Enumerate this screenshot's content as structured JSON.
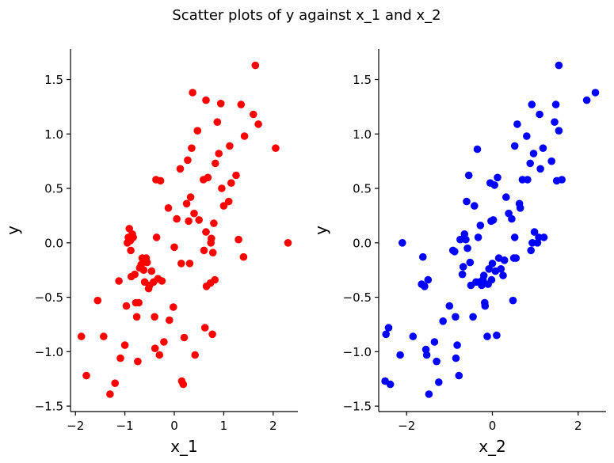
{
  "figure": {
    "title": "Scatter plots of y against x_1 and x_2"
  },
  "chart_data": [
    {
      "type": "scatter",
      "title": "",
      "xlabel": "x_1",
      "ylabel": "y",
      "xlim": [
        -2.1,
        2.5
      ],
      "ylim": [
        -1.55,
        1.78
      ],
      "xticks": [
        -2,
        -1,
        0,
        1,
        2
      ],
      "yticks": [
        -1.5,
        -1.0,
        -0.5,
        0.0,
        0.5,
        1.0,
        1.5
      ],
      "xtick_labels": [
        "−2",
        "−1",
        "0",
        "1",
        "2"
      ],
      "ytick_labels": [
        "−1.5",
        "−1.0",
        "−0.5",
        "0.0",
        "0.5",
        "1.0",
        "1.5"
      ],
      "grid": false,
      "color": "#ff0000",
      "points": [
        [
          -1.88,
          -0.86
        ],
        [
          -1.78,
          -1.22
        ],
        [
          -1.55,
          -0.53
        ],
        [
          -1.43,
          -0.86
        ],
        [
          -1.3,
          -1.39
        ],
        [
          -1.2,
          -1.29
        ],
        [
          -1.12,
          -0.35
        ],
        [
          -1.09,
          -1.06
        ],
        [
          -1.0,
          -0.94
        ],
        [
          -0.97,
          -0.58
        ],
        [
          -0.95,
          0.0
        ],
        [
          -0.93,
          0.05
        ],
        [
          -0.91,
          0.13
        ],
        [
          -0.89,
          0.02
        ],
        [
          -0.88,
          -0.07
        ],
        [
          -0.87,
          -0.31
        ],
        [
          -0.85,
          0.08
        ],
        [
          -0.83,
          0.05
        ],
        [
          -0.8,
          -0.29
        ],
        [
          -0.78,
          -0.55
        ],
        [
          -0.76,
          -0.68
        ],
        [
          -0.74,
          -1.09
        ],
        [
          -0.72,
          -0.55
        ],
        [
          -0.7,
          -0.23
        ],
        [
          -0.67,
          -0.2
        ],
        [
          -0.65,
          -0.14
        ],
        [
          -0.62,
          -0.25
        ],
        [
          -0.6,
          -0.36
        ],
        [
          -0.57,
          -0.14
        ],
        [
          -0.55,
          -0.18
        ],
        [
          -0.52,
          -0.42
        ],
        [
          -0.5,
          -0.39
        ],
        [
          -0.46,
          -0.26
        ],
        [
          -0.42,
          -0.36
        ],
        [
          -0.4,
          -0.68
        ],
        [
          -0.39,
          -0.97
        ],
        [
          -0.37,
          0.58
        ],
        [
          -0.36,
          0.05
        ],
        [
          -0.33,
          -0.33
        ],
        [
          -0.3,
          -1.03
        ],
        [
          -0.28,
          0.57
        ],
        [
          -0.25,
          -0.35
        ],
        [
          -0.21,
          -0.91
        ],
        [
          -0.12,
          0.32
        ],
        [
          -0.1,
          -0.71
        ],
        [
          -0.02,
          -0.59
        ],
        [
          0.0,
          -0.04
        ],
        [
          0.05,
          0.22
        ],
        [
          0.12,
          0.68
        ],
        [
          0.14,
          -0.19
        ],
        [
          0.15,
          -1.27
        ],
        [
          0.18,
          -1.3
        ],
        [
          0.2,
          -0.87
        ],
        [
          0.25,
          0.36
        ],
        [
          0.27,
          0.76
        ],
        [
          0.29,
          0.2
        ],
        [
          0.31,
          -0.19
        ],
        [
          0.33,
          0.42
        ],
        [
          0.35,
          0.87
        ],
        [
          0.37,
          1.38
        ],
        [
          0.4,
          0.27
        ],
        [
          0.42,
          -1.03
        ],
        [
          0.47,
          1.03
        ],
        [
          0.5,
          0.21
        ],
        [
          0.59,
          0.58
        ],
        [
          0.6,
          -0.07
        ],
        [
          0.62,
          -0.78
        ],
        [
          0.64,
          0.1
        ],
        [
          0.64,
          1.31
        ],
        [
          0.65,
          -0.4
        ],
        [
          0.68,
          0.6
        ],
        [
          0.73,
          -0.37
        ],
        [
          0.74,
          0.0
        ],
        [
          0.75,
          0.04
        ],
        [
          0.77,
          -0.84
        ],
        [
          0.78,
          -0.09
        ],
        [
          0.8,
          0.18
        ],
        [
          0.82,
          -0.34
        ],
        [
          0.83,
          0.73
        ],
        [
          0.87,
          1.11
        ],
        [
          0.9,
          0.82
        ],
        [
          0.94,
          1.28
        ],
        [
          0.96,
          0.5
        ],
        [
          1.0,
          0.34
        ],
        [
          1.1,
          0.38
        ],
        [
          1.12,
          0.89
        ],
        [
          1.15,
          0.55
        ],
        [
          1.25,
          0.62
        ],
        [
          1.3,
          0.03
        ],
        [
          1.35,
          1.27
        ],
        [
          1.4,
          -0.13
        ],
        [
          1.42,
          0.98
        ],
        [
          1.6,
          1.18
        ],
        [
          1.64,
          1.63
        ],
        [
          1.7,
          1.09
        ],
        [
          2.05,
          0.87
        ],
        [
          2.3,
          0.0
        ]
      ]
    },
    {
      "type": "scatter",
      "title": "",
      "xlabel": "x_2",
      "ylabel": "y",
      "xlim": [
        -2.65,
        2.65
      ],
      "ylim": [
        -1.55,
        1.78
      ],
      "xticks": [
        -2,
        0,
        2
      ],
      "yticks": [
        -1.5,
        -1.0,
        -0.5,
        0.0,
        0.5,
        1.0,
        1.5
      ],
      "xtick_labels": [
        "−2",
        "0",
        "2"
      ],
      "ytick_labels": [
        "−1.5",
        "−1.0",
        "−0.5",
        "0.0",
        "0.5",
        "1.0",
        "1.5"
      ],
      "grid": false,
      "color": "#0000ff",
      "points": [
        [
          -2.5,
          -1.27
        ],
        [
          -2.48,
          -0.84
        ],
        [
          -2.42,
          -0.78
        ],
        [
          -2.38,
          -1.3
        ],
        [
          -2.15,
          -1.03
        ],
        [
          -2.1,
          0.0
        ],
        [
          -1.85,
          -0.86
        ],
        [
          -1.65,
          -0.38
        ],
        [
          -1.62,
          -0.13
        ],
        [
          -1.58,
          -0.4
        ],
        [
          -1.55,
          -0.98
        ],
        [
          -1.53,
          -1.03
        ],
        [
          -1.5,
          -0.34
        ],
        [
          -1.48,
          -1.39
        ],
        [
          -1.35,
          -0.91
        ],
        [
          -1.3,
          -1.09
        ],
        [
          -1.25,
          -1.28
        ],
        [
          -1.15,
          -0.72
        ],
        [
          -1.0,
          -0.58
        ],
        [
          -0.92,
          -0.07
        ],
        [
          -0.88,
          -0.08
        ],
        [
          -0.86,
          -0.68
        ],
        [
          -0.85,
          -1.06
        ],
        [
          -0.82,
          -0.94
        ],
        [
          -0.78,
          -1.22
        ],
        [
          -0.75,
          0.03
        ],
        [
          -0.7,
          -0.29
        ],
        [
          -0.68,
          -0.22
        ],
        [
          -0.65,
          0.08
        ],
        [
          -0.62,
          0.03
        ],
        [
          -0.6,
          0.38
        ],
        [
          -0.58,
          -0.05
        ],
        [
          -0.55,
          0.62
        ],
        [
          -0.52,
          -0.18
        ],
        [
          -0.5,
          -0.39
        ],
        [
          -0.45,
          -0.68
        ],
        [
          -0.42,
          0.34
        ],
        [
          -0.38,
          -0.36
        ],
        [
          -0.35,
          0.86
        ],
        [
          -0.33,
          0.05
        ],
        [
          -0.3,
          -0.36
        ],
        [
          -0.28,
          0.16
        ],
        [
          -0.25,
          -0.39
        ],
        [
          -0.22,
          -0.34
        ],
        [
          -0.2,
          -0.3
        ],
        [
          -0.18,
          -0.55
        ],
        [
          -0.17,
          -0.58
        ],
        [
          -0.12,
          -0.86
        ],
        [
          -0.1,
          -0.38
        ],
        [
          -0.08,
          -0.24
        ],
        [
          -0.05,
          0.55
        ],
        [
          -0.03,
          0.2
        ],
        [
          -0.02,
          -0.34
        ],
        [
          0.0,
          -0.19
        ],
        [
          0.02,
          0.21
        ],
        [
          0.05,
          0.53
        ],
        [
          0.07,
          -0.26
        ],
        [
          0.1,
          -0.85
        ],
        [
          0.12,
          0.6
        ],
        [
          0.15,
          -0.14
        ],
        [
          0.2,
          -0.24
        ],
        [
          0.25,
          -0.3
        ],
        [
          0.28,
          -0.16
        ],
        [
          0.32,
          0.42
        ],
        [
          0.38,
          0.27
        ],
        [
          0.45,
          0.22
        ],
        [
          0.48,
          -0.53
        ],
        [
          0.5,
          -0.14
        ],
        [
          0.52,
          0.05
        ],
        [
          0.52,
          0.89
        ],
        [
          0.55,
          -0.14
        ],
        [
          0.58,
          1.09
        ],
        [
          0.63,
          0.36
        ],
        [
          0.65,
          0.32
        ],
        [
          0.7,
          0.58
        ],
        [
          0.8,
          0.98
        ],
        [
          0.82,
          0.58
        ],
        [
          0.88,
          0.73
        ],
        [
          0.9,
          -0.07
        ],
        [
          0.92,
          1.27
        ],
        [
          0.93,
          0.0
        ],
        [
          0.96,
          0.82
        ],
        [
          0.98,
          0.1
        ],
        [
          1.05,
          0.0
        ],
        [
          1.08,
          0.05
        ],
        [
          1.1,
          1.18
        ],
        [
          1.12,
          0.68
        ],
        [
          1.18,
          0.87
        ],
        [
          1.2,
          0.05
        ],
        [
          1.38,
          0.75
        ],
        [
          1.45,
          1.11
        ],
        [
          1.48,
          1.27
        ],
        [
          1.5,
          0.57
        ],
        [
          1.55,
          1.03
        ],
        [
          1.55,
          1.63
        ],
        [
          1.62,
          0.58
        ],
        [
          2.2,
          1.31
        ],
        [
          2.4,
          1.38
        ]
      ]
    }
  ]
}
